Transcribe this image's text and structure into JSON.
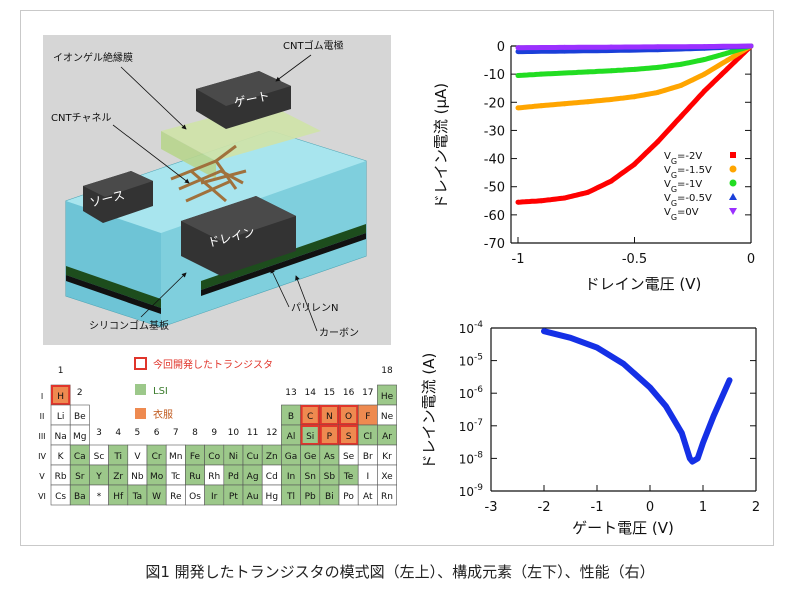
{
  "schematic": {
    "labels": {
      "ion_gel": "イオンゲル絶縁膜",
      "cnt_rubber": "CNTゴム電極",
      "cnt_channel": "CNTチャネル",
      "gate": "ゲート",
      "source": "ソース",
      "drain": "ドレイン",
      "silicone": "シリコンゴム基板",
      "parylene": "パリレンN",
      "carbon": "カーボン"
    }
  },
  "periodic_table": {
    "legend": {
      "developed": "今回開発したトランジスタ",
      "lsi": "LSI",
      "clothing": "衣服"
    },
    "colors": {
      "developed": "#e0352b",
      "lsi": "#9cc88a",
      "clothing": "#ee8a50",
      "plain": "#ffffff"
    },
    "groups": [
      "1",
      "2",
      "3",
      "4",
      "5",
      "6",
      "7",
      "8",
      "9",
      "10",
      "11",
      "12",
      "13",
      "14",
      "15",
      "16",
      "17",
      "18"
    ],
    "periods": [
      "I",
      "II",
      "III",
      "IV",
      "V",
      "VI"
    ],
    "rows": [
      [
        {
          "s": "H",
          "c": "clothing",
          "r": 1
        },
        {
          "s": "He",
          "c": "lsi"
        }
      ],
      [
        {
          "s": "Li"
        },
        {
          "s": "Be"
        },
        {
          "s": "B",
          "c": "lsi"
        },
        {
          "s": "C",
          "c": "clothing",
          "r": 1
        },
        {
          "s": "N",
          "c": "clothing",
          "r": 1
        },
        {
          "s": "O",
          "c": "clothing",
          "r": 1
        },
        {
          "s": "F",
          "c": "clothing"
        },
        {
          "s": "Ne"
        }
      ],
      [
        {
          "s": "Na"
        },
        {
          "s": "Mg"
        },
        {
          "s": "Al",
          "c": "lsi"
        },
        {
          "s": "Si",
          "c": "lsi",
          "r": 1
        },
        {
          "s": "P",
          "c": "clothing",
          "r": 1
        },
        {
          "s": "S",
          "c": "clothing",
          "r": 1
        },
        {
          "s": "Cl",
          "c": "lsi"
        },
        {
          "s": "Ar",
          "c": "lsi"
        }
      ],
      [
        {
          "s": "K"
        },
        {
          "s": "Ca",
          "c": "lsi"
        },
        {
          "s": "Sc"
        },
        {
          "s": "Ti",
          "c": "lsi"
        },
        {
          "s": "V"
        },
        {
          "s": "Cr",
          "c": "lsi"
        },
        {
          "s": "Mn"
        },
        {
          "s": "Fe",
          "c": "lsi"
        },
        {
          "s": "Co",
          "c": "lsi"
        },
        {
          "s": "Ni",
          "c": "lsi"
        },
        {
          "s": "Cu",
          "c": "lsi"
        },
        {
          "s": "Zn",
          "c": "lsi"
        },
        {
          "s": "Ga",
          "c": "lsi"
        },
        {
          "s": "Ge",
          "c": "lsi"
        },
        {
          "s": "As",
          "c": "lsi"
        },
        {
          "s": "Se"
        },
        {
          "s": "Br"
        },
        {
          "s": "Kr"
        }
      ],
      [
        {
          "s": "Rb"
        },
        {
          "s": "Sr",
          "c": "lsi"
        },
        {
          "s": "Y",
          "c": "lsi"
        },
        {
          "s": "Zr",
          "c": "lsi"
        },
        {
          "s": "Nb"
        },
        {
          "s": "Mo",
          "c": "lsi"
        },
        {
          "s": "Tc"
        },
        {
          "s": "Ru",
          "c": "lsi"
        },
        {
          "s": "Rh"
        },
        {
          "s": "Pd",
          "c": "lsi"
        },
        {
          "s": "Ag",
          "c": "lsi"
        },
        {
          "s": "Cd"
        },
        {
          "s": "In",
          "c": "lsi"
        },
        {
          "s": "Sn",
          "c": "lsi"
        },
        {
          "s": "Sb",
          "c": "lsi"
        },
        {
          "s": "Te",
          "c": "lsi"
        },
        {
          "s": "I"
        },
        {
          "s": "Xe"
        }
      ],
      [
        {
          "s": "Cs"
        },
        {
          "s": "Ba",
          "c": "lsi"
        },
        {
          "s": "*"
        },
        {
          "s": "Hf",
          "c": "lsi"
        },
        {
          "s": "Ta",
          "c": "lsi"
        },
        {
          "s": "W",
          "c": "lsi"
        },
        {
          "s": "Re"
        },
        {
          "s": "Os"
        },
        {
          "s": "Ir",
          "c": "lsi"
        },
        {
          "s": "Pt",
          "c": "lsi"
        },
        {
          "s": "Au",
          "c": "lsi"
        },
        {
          "s": "Hg"
        },
        {
          "s": "Tl",
          "c": "lsi"
        },
        {
          "s": "Pb",
          "c": "lsi"
        },
        {
          "s": "Bi",
          "c": "lsi"
        },
        {
          "s": "Po"
        },
        {
          "s": "At"
        },
        {
          "s": "Rn"
        }
      ]
    ]
  },
  "chart_data": [
    {
      "type": "scatter",
      "xlabel": "ドレイン電圧 (V)",
      "ylabel": "ドレイン電流 (μA)",
      "xlim": [
        -1,
        0
      ],
      "ylim": [
        -70,
        0
      ],
      "xticks": [
        "-1",
        "-0.5",
        "0"
      ],
      "yticks": [
        "0",
        "-10",
        "-20",
        "-30",
        "-40",
        "-50",
        "-60",
        "-70"
      ],
      "legend_position": "bottom-right",
      "series": [
        {
          "name": "VG=-2V",
          "color": "#ff0000",
          "marker": "square",
          "x": [
            -1,
            -0.9,
            -0.8,
            -0.7,
            -0.6,
            -0.5,
            -0.4,
            -0.3,
            -0.2,
            -0.1,
            0
          ],
          "y": [
            -55.5,
            -55,
            -54,
            -52,
            -48,
            -42,
            -34,
            -25,
            -16,
            -8,
            0
          ]
        },
        {
          "name": "VG=-1.5V",
          "color": "#ffa500",
          "marker": "circle",
          "x": [
            -1,
            -0.9,
            -0.8,
            -0.7,
            -0.6,
            -0.5,
            -0.4,
            -0.3,
            -0.2,
            -0.1,
            0
          ],
          "y": [
            -22,
            -21.2,
            -20.5,
            -19.8,
            -19,
            -18,
            -16.5,
            -14,
            -10,
            -5,
            0
          ]
        },
        {
          "name": "VG=-1V",
          "color": "#22dd22",
          "marker": "circle",
          "x": [
            -1,
            -0.9,
            -0.8,
            -0.7,
            -0.6,
            -0.5,
            -0.4,
            -0.3,
            -0.2,
            -0.1,
            0
          ],
          "y": [
            -10.5,
            -10,
            -9.6,
            -9.2,
            -8.8,
            -8.3,
            -7.6,
            -6.5,
            -4.8,
            -2.5,
            0
          ]
        },
        {
          "name": "VG=-0.5V",
          "color": "#1a3fd9",
          "marker": "triangle",
          "x": [
            -1,
            -0.8,
            -0.6,
            -0.4,
            -0.2,
            0
          ],
          "y": [
            -2,
            -1.8,
            -1.6,
            -1.3,
            -0.8,
            0
          ]
        },
        {
          "name": "VG=0V",
          "color": "#9b30ff",
          "marker": "triangle-down",
          "x": [
            -1,
            -0.8,
            -0.6,
            -0.4,
            -0.2,
            0
          ],
          "y": [
            -0.6,
            -0.5,
            -0.4,
            -0.3,
            -0.2,
            0
          ]
        }
      ]
    },
    {
      "type": "line",
      "xlabel": "ゲート電圧 (V)",
      "ylabel": "ドレイン電流 (A)",
      "xlim": [
        -3,
        2
      ],
      "ylog": true,
      "ylim": [
        1e-09,
        0.0001
      ],
      "xticks": [
        "-3",
        "-2",
        "-1",
        "0",
        "1",
        "2"
      ],
      "yticks": [
        "10-9",
        "10-8",
        "10-7",
        "10-6",
        "10-5",
        "10-4"
      ],
      "series": [
        {
          "name": "",
          "color": "#1530e6",
          "x": [
            -2,
            -1.5,
            -1,
            -0.5,
            0,
            0.3,
            0.6,
            0.75,
            0.8,
            0.9,
            1.0,
            1.2,
            1.5
          ],
          "y": [
            8e-05,
            5e-05,
            2.5e-05,
            8e-06,
            1.5e-06,
            4e-07,
            6e-08,
            1e-08,
            8e-09,
            1e-08,
            3e-08,
            2e-07,
            2.5e-06
          ]
        }
      ]
    }
  ],
  "caption": "図1 開発したトランジスタの模式図（左上）、構成元素（左下）、性能（右）"
}
